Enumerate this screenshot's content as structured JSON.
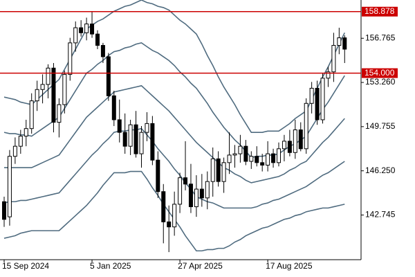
{
  "chart_data": {
    "type": "candlestick",
    "categories": [
      "15 Sep 2024",
      null,
      null,
      null,
      null,
      null,
      null,
      null,
      null,
      null,
      null,
      null,
      null,
      null,
      null,
      null,
      "5 Jan 2025",
      null,
      null,
      null,
      null,
      null,
      null,
      null,
      null,
      null,
      null,
      null,
      null,
      null,
      null,
      null,
      "27 Apr 2025",
      null,
      null,
      null,
      null,
      null,
      null,
      null,
      null,
      null,
      null,
      null,
      null,
      null,
      null,
      null,
      "17 Aug 2025",
      null,
      null,
      null,
      null,
      null,
      null,
      null,
      null,
      null,
      null,
      null,
      null,
      null,
      null
    ],
    "ohlc": {
      "open": [
        143.8,
        142.6,
        147.4,
        148.2,
        149.0,
        149.6,
        151.8,
        152.7,
        153.1,
        154.4,
        150.1,
        151.5,
        153.9,
        156.4,
        157.6,
        157.2,
        157.9,
        157.1,
        156.2,
        155.3,
        152.2,
        150.3,
        149.3,
        148.2,
        149.9,
        147.6,
        149.3,
        150.0,
        147.1,
        144.6,
        142.2,
        141.8,
        143.6,
        145.7,
        145.2,
        143.4,
        144.8,
        144.1,
        145.4,
        147.2,
        145.4,
        146.9,
        147.5,
        147.6,
        148.2,
        147.0,
        147.4,
        146.9,
        146.7,
        147.6,
        146.9,
        148.0,
        148.6,
        147.7,
        149.5,
        148.0,
        151.6,
        152.8,
        150.3,
        153.6,
        154.1,
        156.2,
        156.8
      ],
      "high": [
        144.2,
        147.9,
        148.9,
        149.5,
        150.3,
        152.4,
        153.4,
        153.9,
        154.7,
        154.8,
        152.0,
        154.2,
        156.8,
        158.1,
        158.2,
        158.4,
        158.9,
        157.4,
        156.4,
        155.6,
        152.6,
        151.9,
        150.8,
        150.3,
        151.0,
        149.8,
        150.9,
        150.6,
        147.8,
        145.2,
        143.5,
        144.6,
        146.1,
        148.6,
        146.8,
        145.9,
        146.0,
        146.2,
        148.1,
        147.8,
        147.3,
        149.3,
        148.3,
        149.1,
        148.7,
        147.8,
        148.2,
        147.6,
        148.6,
        148.0,
        148.5,
        149.1,
        149.5,
        150.3,
        150.1,
        152.0,
        153.3,
        153.4,
        154.0,
        154.5,
        157.2,
        157.6,
        157.0
      ],
      "low": [
        141.8,
        141.9,
        146.8,
        147.6,
        148.2,
        149.2,
        151.0,
        151.6,
        152.0,
        149.3,
        148.9,
        150.8,
        153.4,
        155.7,
        156.9,
        156.6,
        156.8,
        155.9,
        154.8,
        151.8,
        149.8,
        148.5,
        147.6,
        147.5,
        147.3,
        146.5,
        148.6,
        146.7,
        144.1,
        140.5,
        139.8,
        141.1,
        142.9,
        144.7,
        142.9,
        142.6,
        143.4,
        143.2,
        144.2,
        145.0,
        144.5,
        146.0,
        146.5,
        146.9,
        146.7,
        146.4,
        146.6,
        146.2,
        146.2,
        146.5,
        146.6,
        147.0,
        147.4,
        147.2,
        147.8,
        147.6,
        150.8,
        149.9,
        150.0,
        152.9,
        153.3,
        155.5,
        154.8
      ],
      "close": [
        142.4,
        147.4,
        148.2,
        149.0,
        149.6,
        151.8,
        152.7,
        153.1,
        154.4,
        150.1,
        151.5,
        153.9,
        156.4,
        157.6,
        157.2,
        157.9,
        157.1,
        156.2,
        155.3,
        152.2,
        150.3,
        149.3,
        148.2,
        149.9,
        147.6,
        149.3,
        150.0,
        147.1,
        144.6,
        142.2,
        141.8,
        143.6,
        145.7,
        145.2,
        143.4,
        144.8,
        144.1,
        145.4,
        147.2,
        145.4,
        146.9,
        147.5,
        147.6,
        148.2,
        147.0,
        147.4,
        146.9,
        146.7,
        147.6,
        146.9,
        148.0,
        148.6,
        147.7,
        149.5,
        148.0,
        151.6,
        152.8,
        150.3,
        153.6,
        154.1,
        156.2,
        156.8,
        155.9
      ]
    },
    "up_color": "#ffffff",
    "down_color": "#000000",
    "series": [
      {
        "color": "#4f6b7f",
        "values": [
          152.1,
          152.0,
          151.9,
          151.7,
          151.6,
          151.5,
          151.9,
          152.3,
          152.7,
          153.1,
          153.5,
          154.3,
          155.1,
          155.9,
          156.7,
          157.5,
          157.8,
          158.1,
          158.3,
          158.6,
          158.9,
          159.1,
          159.3,
          159.4,
          159.6,
          159.8,
          159.6,
          159.5,
          159.3,
          159.2,
          159.0,
          158.6,
          158.2,
          157.9,
          157.5,
          157.1,
          156.3,
          155.4,
          154.6,
          153.7,
          152.9,
          152.2,
          151.5,
          150.7,
          150.0,
          149.3,
          149.3,
          149.3,
          149.4,
          149.4,
          149.4,
          149.7,
          150.0,
          150.4,
          150.7,
          151.0,
          151.9,
          152.8,
          153.7,
          154.5,
          155.4,
          156.3,
          157.2
        ]
      },
      {
        "color": "#4f6b7f",
        "values": [
          149.3,
          149.2,
          149.2,
          149.1,
          149.1,
          149.0,
          149.3,
          149.6,
          149.9,
          150.2,
          150.5,
          151.2,
          151.9,
          152.6,
          153.3,
          154.0,
          154.3,
          154.7,
          155.0,
          155.4,
          155.7,
          155.8,
          156.0,
          156.1,
          156.3,
          156.4,
          156.1,
          155.8,
          155.6,
          155.3,
          155.0,
          154.6,
          154.1,
          153.7,
          153.2,
          152.8,
          152.2,
          151.6,
          150.9,
          150.3,
          149.7,
          149.2,
          148.7,
          148.3,
          147.8,
          147.3,
          147.4,
          147.4,
          147.5,
          147.5,
          147.6,
          147.9,
          148.2,
          148.4,
          148.7,
          149.0,
          149.7,
          150.4,
          151.1,
          151.7,
          152.4,
          153.1,
          153.8
        ]
      },
      {
        "color": "#4f6b7f",
        "values": [
          146.5,
          146.5,
          146.5,
          146.5,
          146.5,
          146.5,
          146.7,
          146.9,
          147.1,
          147.3,
          147.5,
          148.1,
          148.7,
          149.3,
          149.9,
          150.5,
          150.9,
          151.3,
          151.7,
          152.1,
          152.5,
          152.6,
          152.7,
          152.8,
          152.9,
          153.0,
          152.6,
          152.2,
          151.8,
          151.4,
          151.0,
          150.5,
          150.0,
          149.5,
          149.0,
          148.5,
          148.1,
          147.7,
          147.3,
          146.9,
          146.5,
          146.3,
          146.0,
          145.8,
          145.5,
          145.3,
          145.4,
          145.5,
          145.6,
          145.7,
          145.8,
          146.0,
          146.3,
          146.5,
          146.8,
          147.0,
          147.5,
          148.0,
          148.5,
          148.9,
          149.4,
          149.9,
          150.4
        ]
      },
      {
        "color": "#4f6b7f",
        "values": [
          143.7,
          143.8,
          143.8,
          143.9,
          143.9,
          144.0,
          144.1,
          144.2,
          144.3,
          144.4,
          144.5,
          145.0,
          145.5,
          146.0,
          146.5,
          147.0,
          147.5,
          147.9,
          148.4,
          148.8,
          149.3,
          149.4,
          149.4,
          149.5,
          149.5,
          149.6,
          149.1,
          148.6,
          148.0,
          147.5,
          147.0,
          146.4,
          145.9,
          145.3,
          144.8,
          144.2,
          144.0,
          143.8,
          143.7,
          143.5,
          143.3,
          143.3,
          143.3,
          143.3,
          143.3,
          143.3,
          143.4,
          143.6,
          143.7,
          143.9,
          144.0,
          144.2,
          144.4,
          144.6,
          144.8,
          145.0,
          145.3,
          145.6,
          145.9,
          146.1,
          146.4,
          146.7,
          147.0
        ]
      },
      {
        "color": "#4f6b7f",
        "values": [
          140.9,
          141.0,
          141.1,
          141.3,
          141.4,
          141.5,
          141.5,
          141.5,
          141.5,
          141.5,
          141.5,
          141.9,
          142.3,
          142.7,
          143.1,
          143.5,
          144.0,
          144.5,
          145.1,
          145.6,
          146.1,
          146.1,
          146.1,
          146.2,
          146.2,
          146.2,
          145.6,
          144.9,
          144.3,
          143.6,
          143.0,
          142.4,
          141.8,
          141.1,
          140.5,
          139.9,
          139.9,
          140.0,
          140.0,
          140.1,
          140.1,
          140.3,
          140.6,
          140.8,
          141.1,
          141.3,
          141.5,
          141.7,
          141.8,
          142.0,
          142.2,
          142.4,
          142.5,
          142.7,
          142.8,
          143.0,
          143.1,
          143.2,
          143.3,
          143.3,
          143.4,
          143.5,
          143.6
        ]
      }
    ],
    "hlines": [
      {
        "value": 158.878,
        "color": "#cc0000"
      },
      {
        "value": 154,
        "label": "154.000",
        "color": "#cc0000"
      }
    ],
    "ylim": [
      139.2,
      159.8
    ],
    "yticks": [
      142.745,
      {
        "value": 146.25,
        "label": "146.250"
      },
      149.755,
      {
        "value": 153.26,
        "label": "153.260"
      },
      156.765
    ]
  }
}
